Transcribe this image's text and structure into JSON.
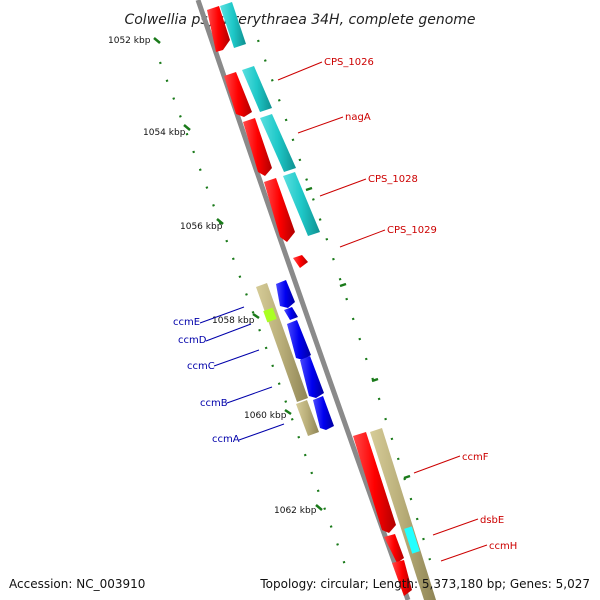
{
  "title": "Colwellia psychrerythraea 34H, complete genome",
  "footer": {
    "accession": "Accession: NC_003910",
    "summary": "Topology: circular; Length: 5,373,180 bp; Genes: 5,027"
  },
  "ruler_labels": [
    "1052 kbp",
    "1054 kbp",
    "1056 kbp",
    "1058 kbp",
    "1060 kbp",
    "1062 kbp"
  ],
  "colors": {
    "backbone": "#8a8a8a",
    "ruler": "#1a7a1a",
    "forward_gene": "#ff1a1a",
    "cds": "#1ec8c8",
    "operon": "#b8ad78",
    "reverse_gene": "#1010e0",
    "highlight_green": "#aaff22",
    "highlight_cyan": "#22ffff",
    "label_red": "#cc0000",
    "label_blue": "#0000aa"
  },
  "gene_labels_forward": [
    "CPS_1026",
    "nagA",
    "CPS_1028",
    "CPS_1029",
    "ccmF",
    "dsbE",
    "ccmH"
  ],
  "gene_labels_reverse": [
    "ccmE",
    "ccmD",
    "ccmC",
    "ccmB",
    "ccmA"
  ]
}
